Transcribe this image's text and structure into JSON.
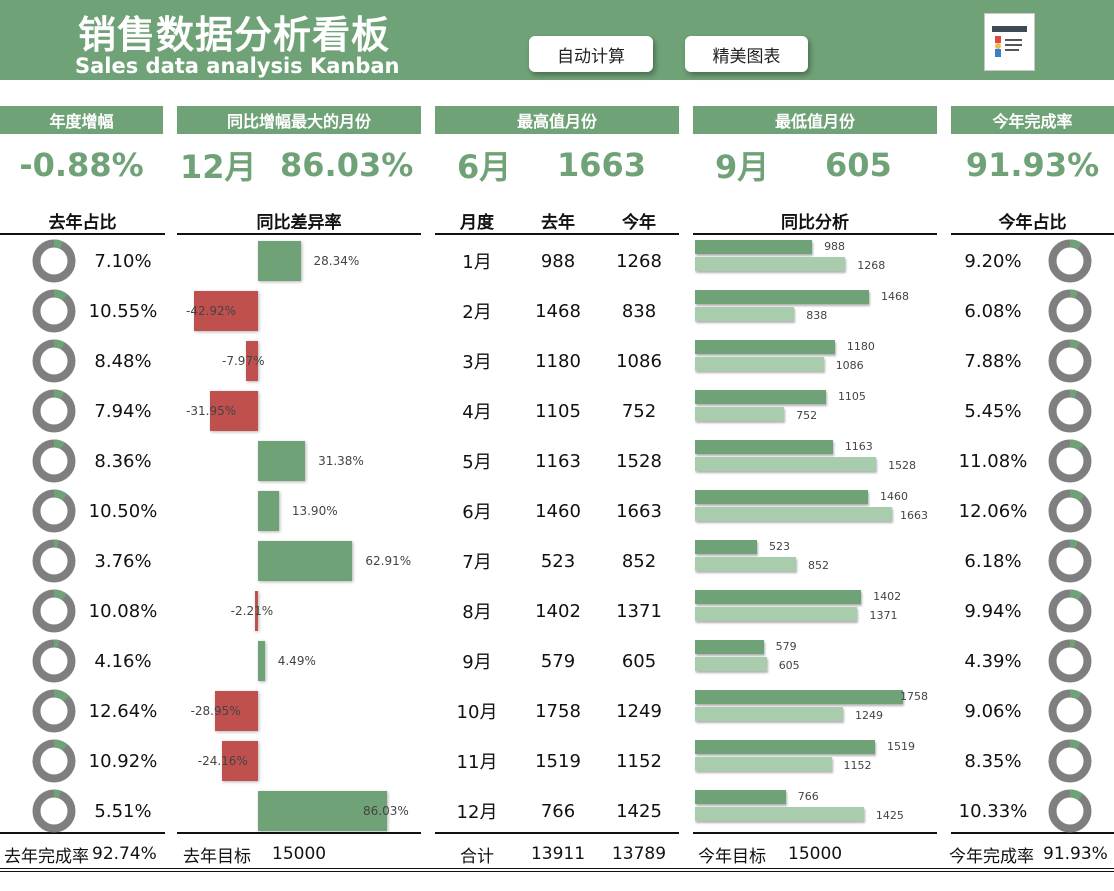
{
  "header": {
    "title_cn": "销售数据分析看板",
    "title_en": "Sales data analysis Kanban",
    "buttons": [
      "自动计算",
      "精美图表"
    ]
  },
  "kpis": {
    "annual_growth": {
      "label": "年度增幅",
      "value": "-0.88%"
    },
    "max_yoy_month": {
      "label": "同比增幅最大的月份",
      "month": "12月",
      "value": "86.03%"
    },
    "highest_month": {
      "label": "最高值月份",
      "month": "6月",
      "value": "1663"
    },
    "lowest_month": {
      "label": "最低值月份",
      "month": "9月",
      "value": "605"
    },
    "completion": {
      "label": "今年完成率",
      "value": "91.93%"
    }
  },
  "columns": {
    "last_share": "去年占比",
    "diff_rate": "同比差异率",
    "month": "月度",
    "last_year": "去年",
    "this_year": "今年",
    "compare": "同比分析",
    "this_share": "今年占比"
  },
  "months": [
    {
      "month": "1月",
      "last": 988,
      "this": 1268,
      "last_share": "7.10%",
      "this_share": "9.20%",
      "diff": 28.34,
      "diff_label": "28.34%"
    },
    {
      "month": "2月",
      "last": 1468,
      "this": 838,
      "last_share": "10.55%",
      "this_share": "6.08%",
      "diff": -42.92,
      "diff_label": "-42.92%"
    },
    {
      "month": "3月",
      "last": 1180,
      "this": 1086,
      "last_share": "8.48%",
      "this_share": "7.88%",
      "diff": -7.97,
      "diff_label": "-7.97%"
    },
    {
      "month": "4月",
      "last": 1105,
      "this": 752,
      "last_share": "7.94%",
      "this_share": "5.45%",
      "diff": -31.95,
      "diff_label": "-31.95%"
    },
    {
      "month": "5月",
      "last": 1163,
      "this": 1528,
      "last_share": "8.36%",
      "this_share": "11.08%",
      "diff": 31.38,
      "diff_label": "31.38%"
    },
    {
      "month": "6月",
      "last": 1460,
      "this": 1663,
      "last_share": "10.50%",
      "this_share": "12.06%",
      "diff": 13.9,
      "diff_label": "13.90%"
    },
    {
      "month": "7月",
      "last": 523,
      "this": 852,
      "last_share": "3.76%",
      "this_share": "6.18%",
      "diff": 62.91,
      "diff_label": "62.91%"
    },
    {
      "month": "8月",
      "last": 1402,
      "this": 1371,
      "last_share": "10.08%",
      "this_share": "9.94%",
      "diff": -2.21,
      "diff_label": "-2.21%"
    },
    {
      "month": "9月",
      "last": 579,
      "this": 605,
      "last_share": "4.16%",
      "this_share": "4.39%",
      "diff": 4.49,
      "diff_label": "4.49%"
    },
    {
      "month": "10月",
      "last": 1758,
      "this": 1249,
      "last_share": "12.64%",
      "this_share": "9.06%",
      "diff": -28.95,
      "diff_label": "-28.95%"
    },
    {
      "month": "11月",
      "last": 1519,
      "this": 1152,
      "last_share": "10.92%",
      "this_share": "8.35%",
      "diff": -24.16,
      "diff_label": "-24.16%"
    },
    {
      "month": "12月",
      "last": 766,
      "this": 1425,
      "last_share": "5.51%",
      "this_share": "10.33%",
      "diff": 86.03,
      "diff_label": "86.03%"
    }
  ],
  "footer": {
    "last_completion_label": "去年完成率",
    "last_completion_value": "92.74%",
    "last_target_label": "去年目标",
    "last_target_value": "15000",
    "total_label": "合计",
    "total_last": "13911",
    "total_this": "13789",
    "this_target_label": "今年目标",
    "this_target_value": "15000",
    "this_completion_label": "今年完成率",
    "this_completion_value": "91.93%"
  },
  "colors": {
    "accent": "#70a278",
    "light_green": "#a9ccac",
    "negative": "#c0504d",
    "ring_grey": "#7f7f7f"
  },
  "chart_data": [
    {
      "type": "bar",
      "title": "同比差异率",
      "categories": [
        "1月",
        "2月",
        "3月",
        "4月",
        "5月",
        "6月",
        "7月",
        "8月",
        "9月",
        "10月",
        "11月",
        "12月"
      ],
      "values": [
        28.34,
        -42.92,
        -7.97,
        -31.95,
        31.38,
        13.9,
        62.91,
        -2.21,
        4.49,
        -28.95,
        -24.16,
        86.03
      ],
      "unit": "%"
    },
    {
      "type": "bar",
      "title": "同比分析",
      "categories": [
        "1月",
        "2月",
        "3月",
        "4月",
        "5月",
        "6月",
        "7月",
        "8月",
        "9月",
        "10月",
        "11月",
        "12月"
      ],
      "series": [
        {
          "name": "去年",
          "values": [
            988,
            1468,
            1180,
            1105,
            1163,
            1460,
            523,
            1402,
            579,
            1758,
            1519,
            766
          ]
        },
        {
          "name": "今年",
          "values": [
            1268,
            838,
            1086,
            752,
            1528,
            1663,
            852,
            1371,
            605,
            1249,
            1152,
            1425
          ]
        }
      ],
      "xlim": [
        0,
        1800
      ]
    },
    {
      "type": "pie",
      "title": "去年占比",
      "categories": [
        "1月",
        "2月",
        "3月",
        "4月",
        "5月",
        "6月",
        "7月",
        "8月",
        "9月",
        "10月",
        "11月",
        "12月"
      ],
      "values": [
        7.1,
        10.55,
        8.48,
        7.94,
        8.36,
        10.5,
        3.76,
        10.08,
        4.16,
        12.64,
        10.92,
        5.51
      ],
      "unit": "%"
    },
    {
      "type": "pie",
      "title": "今年占比",
      "categories": [
        "1月",
        "2月",
        "3月",
        "4月",
        "5月",
        "6月",
        "7月",
        "8月",
        "9月",
        "10月",
        "11月",
        "12月"
      ],
      "values": [
        9.2,
        6.08,
        7.88,
        5.45,
        11.08,
        12.06,
        6.18,
        9.94,
        4.39,
        9.06,
        8.35,
        10.33
      ],
      "unit": "%"
    }
  ]
}
